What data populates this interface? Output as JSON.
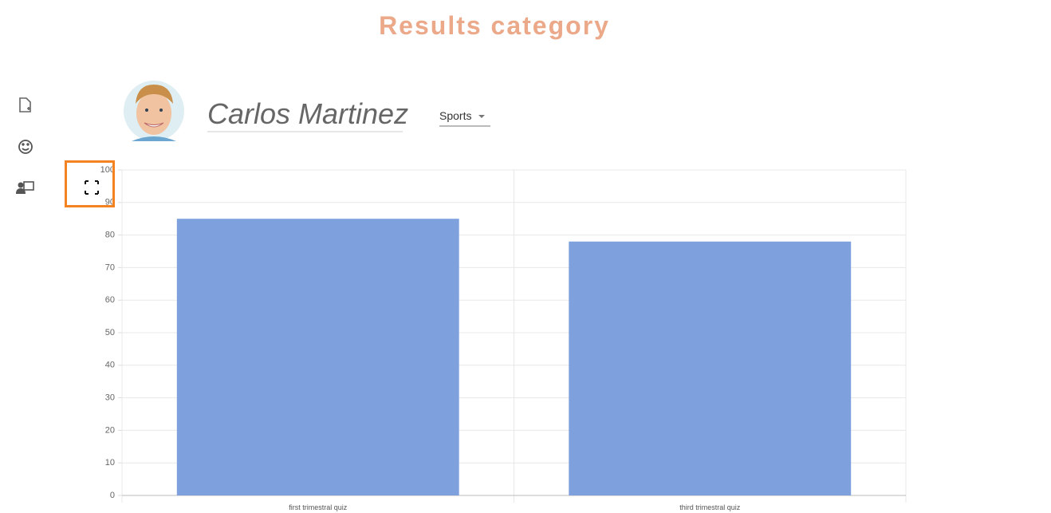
{
  "header": {
    "title": "Results category"
  },
  "profile": {
    "name": "Carlos Martinez",
    "category": "Sports"
  },
  "chart_data": {
    "type": "bar",
    "categories": [
      "first trimestral quiz",
      "third trimestral quiz"
    ],
    "values": [
      85,
      78
    ],
    "color": "#7ea1de",
    "ylim": [
      0,
      100
    ],
    "yticks": [
      0,
      10,
      20,
      30,
      40,
      50,
      60,
      70,
      80,
      90,
      100
    ],
    "grid": true
  }
}
